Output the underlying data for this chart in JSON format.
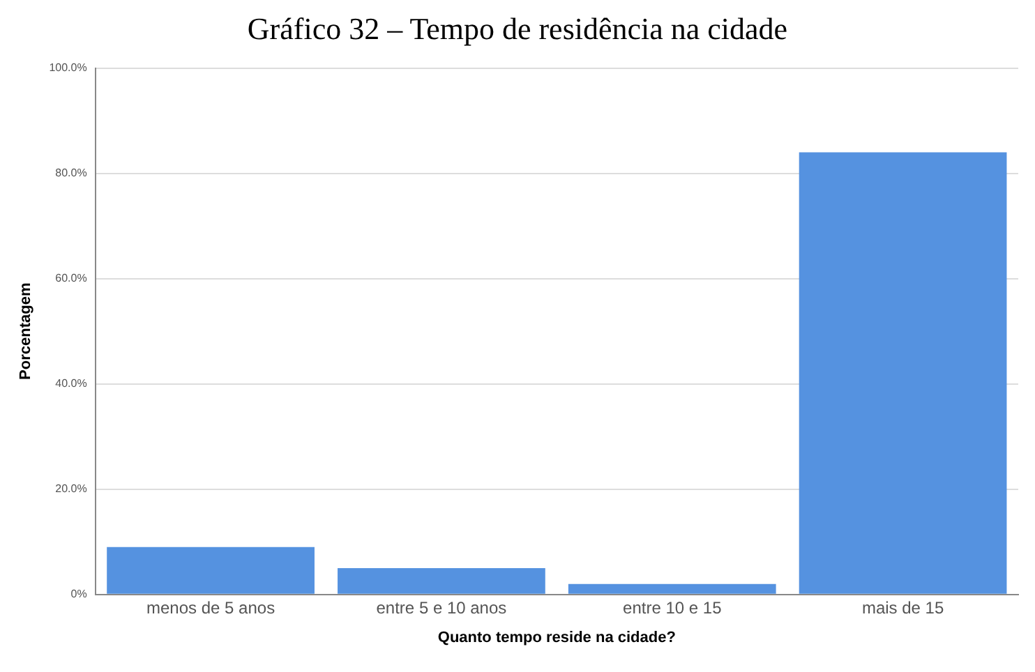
{
  "chart_data": {
    "type": "bar",
    "title": "Gráfico 32 – Tempo de residência na cidade",
    "xlabel": "Quanto tempo reside na cidade?",
    "ylabel": "Porcentagem",
    "categories": [
      "menos de 5 anos",
      "entre 5 e 10 anos",
      "entre 10 e 15",
      "mais de 15"
    ],
    "values": [
      9,
      5,
      2,
      84
    ],
    "color": "#5592e0",
    "ylim": [
      0,
      100
    ],
    "yticks": [
      {
        "value": 0,
        "label": "0%"
      },
      {
        "value": 20,
        "label": "20.0%"
      },
      {
        "value": 40,
        "label": "40.0%"
      },
      {
        "value": 60,
        "label": "60.0%"
      },
      {
        "value": 80,
        "label": "80.0%"
      },
      {
        "value": 100,
        "label": "100.0%"
      }
    ],
    "grid": "y",
    "legend": false
  }
}
